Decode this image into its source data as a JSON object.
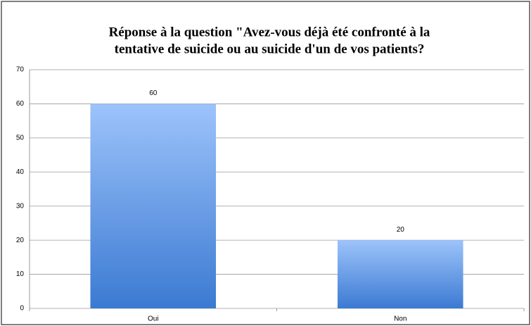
{
  "chart_data": {
    "type": "bar",
    "title": [
      "Réponse à la question \"Avez-vous déjà été confronté à la",
      "tentative de suicide ou au suicide d'un de vos patients?"
    ],
    "categories": [
      "Oui",
      "Non"
    ],
    "values": [
      60,
      20
    ],
    "ylim": [
      0,
      70
    ],
    "yticks": [
      0,
      10,
      20,
      30,
      40,
      50,
      60,
      70
    ],
    "grid": true
  }
}
